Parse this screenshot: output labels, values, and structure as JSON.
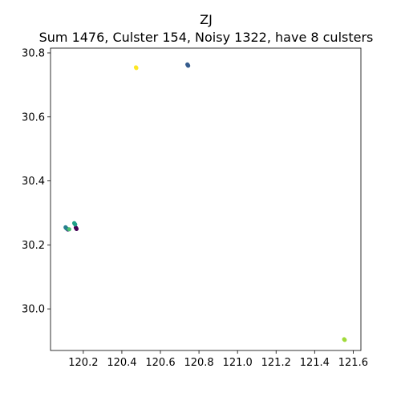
{
  "chart_data": {
    "type": "scatter",
    "title": "ZJ",
    "subtitle": "Sum 1476, Culster 154, Noisy 1322, have 8 culsters",
    "xlabel": "",
    "ylabel": "",
    "xlim": [
      120.03,
      121.64
    ],
    "ylim": [
      29.87,
      30.815
    ],
    "xticks": [
      "120.2",
      "120.4",
      "120.6",
      "120.8",
      "121.0",
      "121.2",
      "121.4",
      "121.6"
    ],
    "yticks": [
      "30.0",
      "30.2",
      "30.4",
      "30.6",
      "30.8"
    ],
    "grid": false,
    "legend": false,
    "series": [
      {
        "color": "#440154",
        "points": [
          [
            120.163,
            30.252
          ],
          [
            120.165,
            30.25
          ],
          [
            120.161,
            30.254
          ]
        ]
      },
      {
        "color": "#46327e",
        "points": [
          [
            120.117,
            30.25
          ],
          [
            120.12,
            30.248
          ]
        ]
      },
      {
        "color": "#365c8d",
        "points": [
          [
            120.742,
            30.762
          ],
          [
            120.744,
            30.76
          ],
          [
            120.74,
            30.764
          ]
        ]
      },
      {
        "color": "#277f8e",
        "points": [
          [
            120.11,
            30.253
          ],
          [
            120.114,
            30.251
          ],
          [
            120.108,
            30.255
          ]
        ]
      },
      {
        "color": "#1fa187",
        "points": [
          [
            120.155,
            30.266
          ],
          [
            120.158,
            30.264
          ],
          [
            120.153,
            30.268
          ]
        ]
      },
      {
        "color": "#4ac16d",
        "points": [
          [
            120.127,
            30.249
          ]
        ]
      },
      {
        "color": "#a0da39",
        "points": [
          [
            121.553,
            29.905
          ],
          [
            121.556,
            29.903
          ]
        ]
      },
      {
        "color": "#fde725",
        "points": [
          [
            120.473,
            30.755
          ],
          [
            120.475,
            30.753
          ]
        ]
      }
    ]
  }
}
